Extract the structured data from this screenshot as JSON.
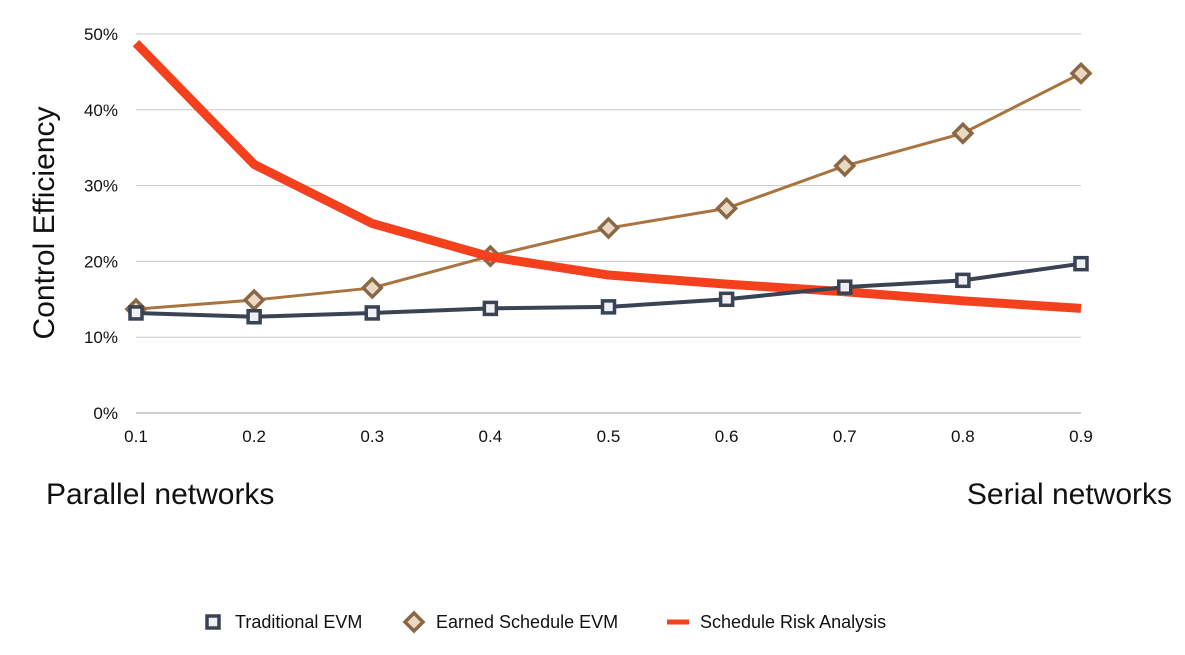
{
  "chart_data": {
    "type": "line",
    "title": "",
    "xlabel": "",
    "ylabel": "Control Efficiency",
    "x": [
      0.1,
      0.2,
      0.3,
      0.4,
      0.5,
      0.6,
      0.7,
      0.8,
      0.9
    ],
    "x_tick_labels": [
      "0.1",
      "0.2",
      "0.3",
      "0.4",
      "0.5",
      "0.6",
      "0.7",
      "0.8",
      "0.9"
    ],
    "ylim": [
      0,
      50
    ],
    "y_ticks": [
      0,
      10,
      20,
      30,
      40,
      50
    ],
    "y_tick_labels": [
      "0%",
      "10%",
      "20%",
      "30%",
      "40%",
      "50%"
    ],
    "grid": true,
    "legend_position": "bottom",
    "series": [
      {
        "name": "Traditional EVM",
        "values": [
          13.2,
          12.7,
          13.2,
          13.8,
          14.0,
          15.0,
          16.6,
          17.5,
          19.7
        ],
        "color": "#3a4354",
        "marker": "square",
        "line_width": 4
      },
      {
        "name": "Earned Schedule EVM",
        "values": [
          13.7,
          14.9,
          16.5,
          20.7,
          24.4,
          27.0,
          32.6,
          36.9,
          44.8
        ],
        "color": "#a8743f",
        "marker": "diamond",
        "line_width": 3
      },
      {
        "name": "Schedule Risk Analysis",
        "values": [
          48.8,
          32.8,
          25.0,
          20.6,
          18.2,
          17.0,
          16.0,
          14.8,
          13.8
        ],
        "color": "#f4401c",
        "marker": "none",
        "line_width": 9
      }
    ]
  },
  "annotations": {
    "left": "Parallel networks",
    "right": "Serial networks"
  }
}
